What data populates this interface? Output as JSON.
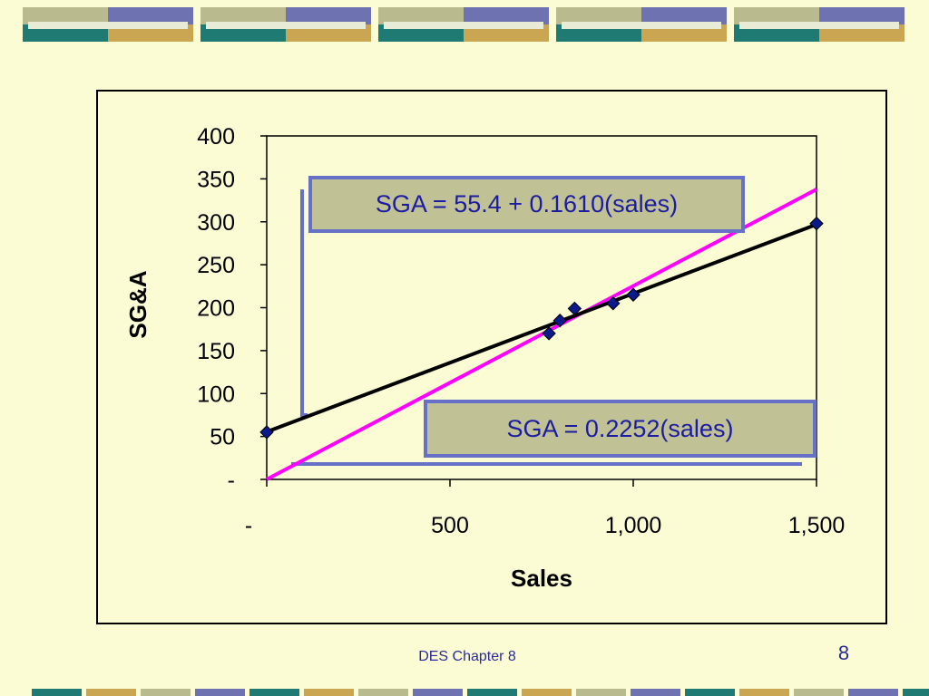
{
  "slide": {
    "footer": "DES Chapter 8",
    "page_number": "8"
  },
  "decor": {
    "top_colors": [
      "#b9ba8e",
      "#6f72b0",
      "#1f7a74",
      "#caa653",
      "#e8ecd6"
    ],
    "bottom_colors": [
      "#1f7a74",
      "#caa653",
      "#b9ba8e",
      "#6f72b0"
    ]
  },
  "chart_data": {
    "type": "scatter",
    "xlabel": "Sales",
    "ylabel": "SG&A",
    "xlim": [
      0,
      1500
    ],
    "ylim": [
      0,
      400
    ],
    "x_ticks": [
      "-",
      "500",
      "1,000",
      "1,500"
    ],
    "x_tick_values": [
      0,
      500,
      1000,
      1500
    ],
    "y_ticks": [
      "-",
      "50",
      "100",
      "150",
      "200",
      "250",
      "300",
      "350",
      "400"
    ],
    "y_tick_values": [
      0,
      50,
      100,
      150,
      200,
      250,
      300,
      350,
      400
    ],
    "points": [
      {
        "x": 0,
        "y": 55
      },
      {
        "x": 770,
        "y": 170
      },
      {
        "x": 800,
        "y": 185
      },
      {
        "x": 840,
        "y": 199
      },
      {
        "x": 945,
        "y": 205
      },
      {
        "x": 1000,
        "y": 215
      },
      {
        "x": 1500,
        "y": 298
      }
    ],
    "lines": [
      {
        "intercept": 55.4,
        "slope": 0.161,
        "color": "#000000",
        "x_range": [
          0,
          1500
        ]
      },
      {
        "intercept": 0,
        "slope": 0.2252,
        "color": "#ff00ff",
        "x_range": [
          0,
          1500
        ]
      }
    ],
    "annotations": [
      "SGA = 55.4 + 0.1610(sales)",
      "SGA = 0.2252(sales)"
    ],
    "marker_color": "#0a1a8a",
    "grid": false
  }
}
